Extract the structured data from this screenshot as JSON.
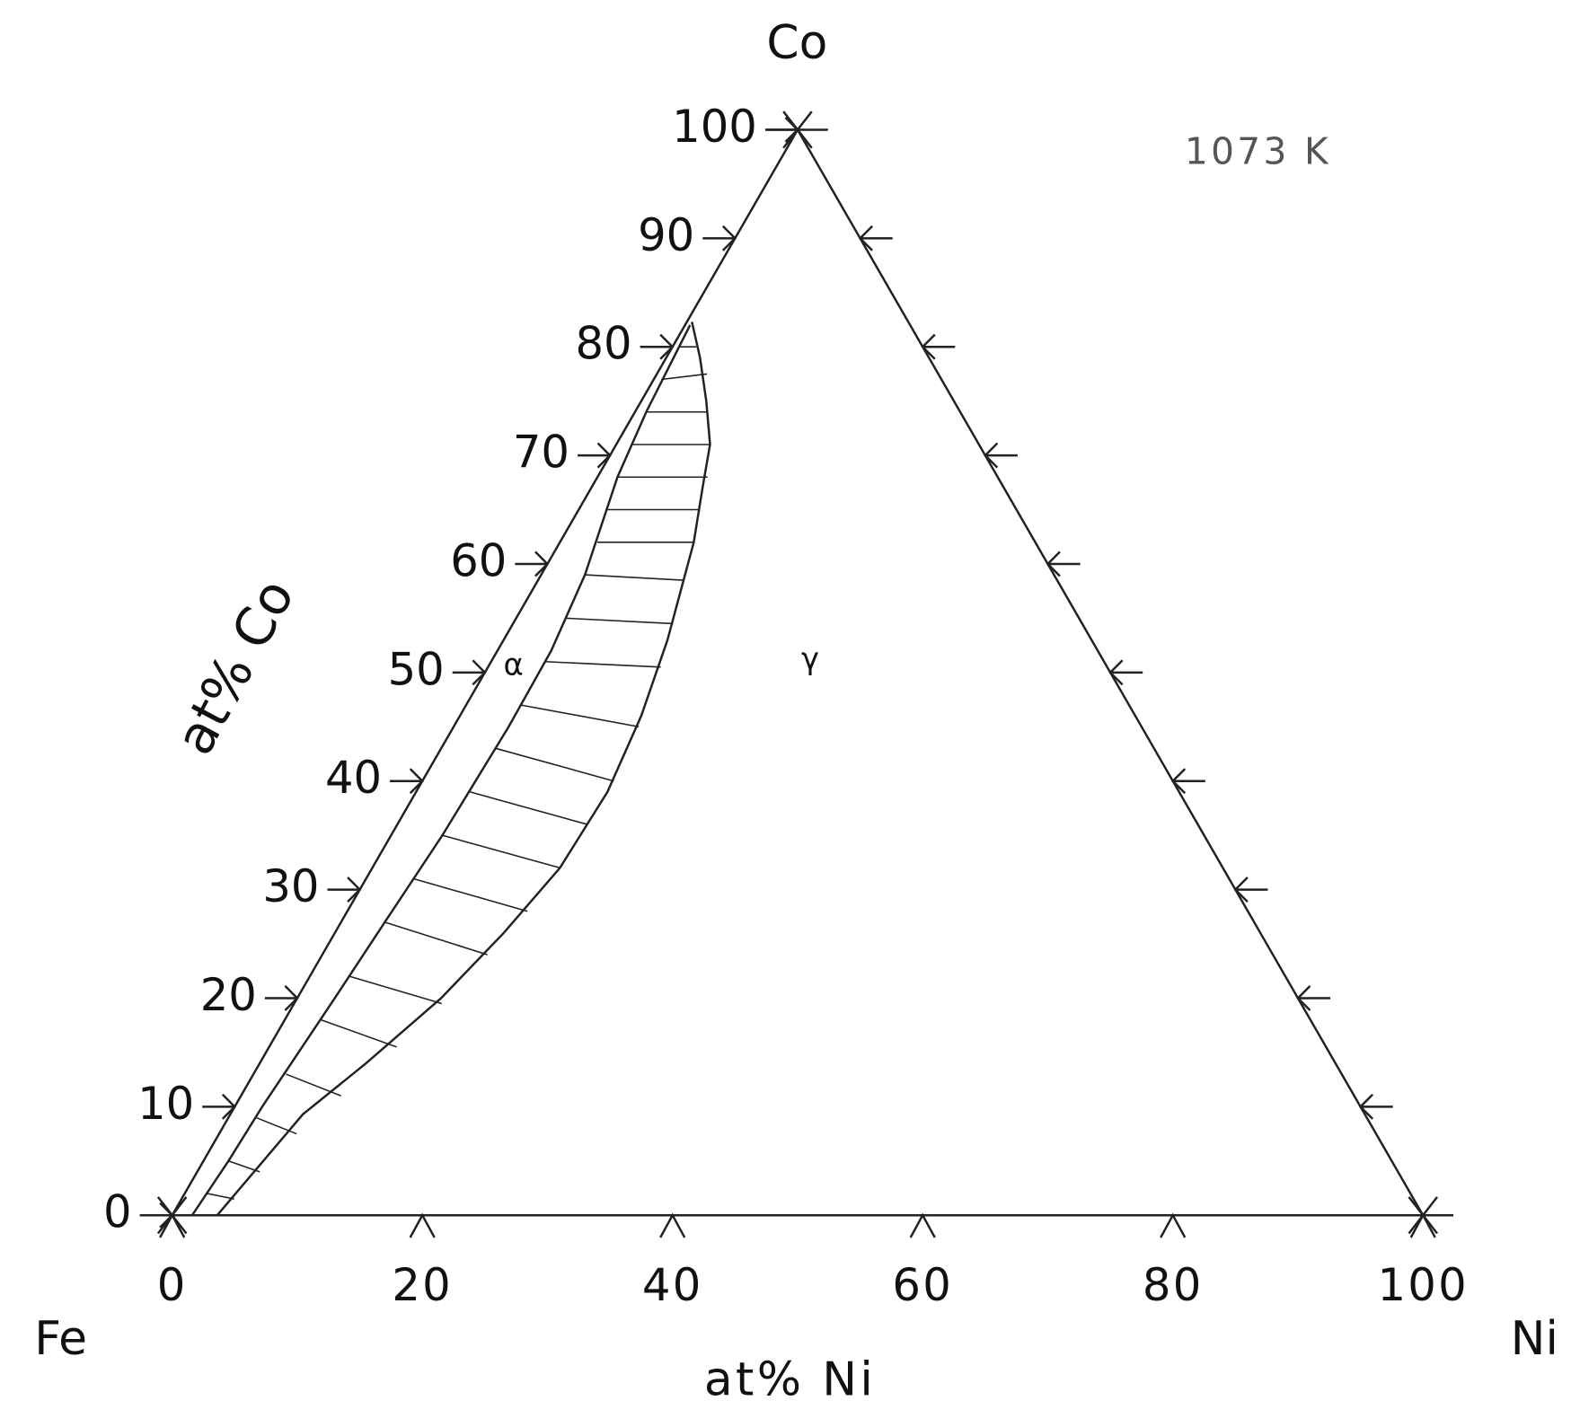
{
  "chart_data": {
    "type": "ternary",
    "corner_labels": {
      "top": "Co",
      "left": "Fe",
      "right": "Ni"
    },
    "xlabel": "at% Ni",
    "ylabel": "at% Co",
    "annotation": "1073 K",
    "phase_labels": [
      "α",
      "γ"
    ],
    "lim": [
      0,
      100
    ],
    "yticks": [
      0,
      10,
      20,
      30,
      40,
      50,
      60,
      70,
      80,
      90,
      100
    ],
    "xticks": [
      0,
      20,
      40,
      60,
      80,
      100
    ],
    "right_ticks": [
      10,
      20,
      30,
      40,
      50,
      60,
      70,
      80,
      90
    ],
    "alpha_boundary": {
      "ni": [
        1.6,
        2.0,
        2.2,
        2.6,
        3.0,
        3.5,
        4.1,
        4.4,
        4.3,
        3.5,
        1.6,
        0.9,
        0.4
      ],
      "co": [
        0,
        5,
        10,
        15,
        20,
        27,
        35,
        45,
        52,
        59,
        68,
        74,
        82
      ]
    },
    "gamma_boundary": {
      "ni": [
        3.6,
        5.8,
        8.5,
        11.5,
        13.5,
        15.0,
        15.3,
        14.5,
        13.1,
        10.7,
        8.9,
        7.5,
        5.2,
        2.7,
        0.4
      ],
      "co": [
        0,
        9.3,
        14,
        20,
        26,
        32,
        39,
        46,
        53,
        62,
        67,
        71,
        75,
        79,
        82.3
      ]
    },
    "tie_lines": [
      [
        [
          1.8,
          2
        ],
        [
          4.2,
          1.5
        ]
      ],
      [
        [
          2.0,
          5
        ],
        [
          5.0,
          4
        ]
      ],
      [
        [
          2.2,
          9
        ],
        [
          6.2,
          7.5
        ]
      ],
      [
        [
          2.6,
          13
        ],
        [
          8.0,
          11
        ]
      ],
      [
        [
          2.9,
          18
        ],
        [
          10.2,
          15.5
        ]
      ],
      [
        [
          3.2,
          22
        ],
        [
          11.8,
          19.5
        ]
      ],
      [
        [
          3.5,
          27
        ],
        [
          13.2,
          24
        ]
      ],
      [
        [
          3.8,
          31
        ],
        [
          14.4,
          28
        ]
      ],
      [
        [
          4.1,
          35
        ],
        [
          15.0,
          32
        ]
      ],
      [
        [
          4.3,
          39
        ],
        [
          15.2,
          36
        ]
      ],
      [
        [
          4.4,
          43
        ],
        [
          15.3,
          40
        ]
      ],
      [
        [
          4.4,
          47
        ],
        [
          14.8,
          45
        ]
      ],
      [
        [
          4.3,
          51
        ],
        [
          13.8,
          50.5
        ]
      ],
      [
        [
          4.0,
          55
        ],
        [
          12.8,
          54.5
        ]
      ],
      [
        [
          3.5,
          59
        ],
        [
          11.6,
          58.5
        ]
      ],
      [
        [
          3.0,
          62
        ],
        [
          10.7,
          62
        ]
      ],
      [
        [
          2.3,
          65
        ],
        [
          9.7,
          65
        ]
      ],
      [
        [
          1.6,
          68
        ],
        [
          8.8,
          68
        ]
      ],
      [
        [
          1.2,
          71
        ],
        [
          7.5,
          71
        ]
      ],
      [
        [
          0.9,
          74
        ],
        [
          5.8,
          74
        ]
      ],
      [
        [
          0.6,
          77
        ],
        [
          4.0,
          77.5
        ]
      ],
      [
        [
          0.5,
          80
        ],
        [
          1.9,
          80
        ]
      ]
    ]
  }
}
